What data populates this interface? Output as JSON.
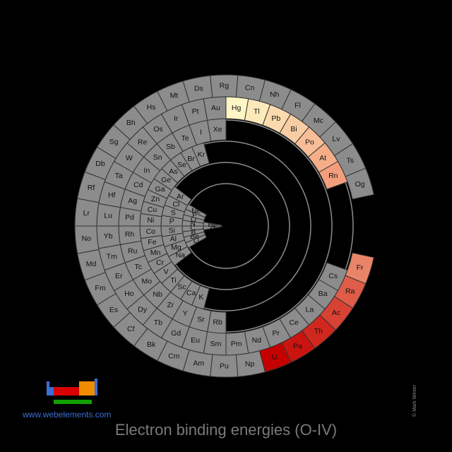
{
  "title": "Electron binding energies (O-IV)",
  "website": "www.webelements.com",
  "copyright": "© Mark Winter",
  "colors": {
    "background": "#000000",
    "no_data": "#8c8c8c",
    "cell_border": "#333333",
    "scale_low": "#ffffcc",
    "scale_mid": "#f4a582",
    "scale_high": "#c40000"
  },
  "chart_data": {
    "type": "heatmap",
    "layout": "spiral periodic table",
    "title": "Electron binding energies (O-IV)",
    "elements_in_order": [
      "H",
      "He",
      "Li",
      "Be",
      "B",
      "C",
      "N",
      "O",
      "F",
      "Ne",
      "Na",
      "Mg",
      "Al",
      "Si",
      "P",
      "S",
      "Cl",
      "Ar",
      "K",
      "Ca",
      "Sc",
      "Ti",
      "V",
      "Cr",
      "Mn",
      "Fe",
      "Co",
      "Ni",
      "Cu",
      "Zn",
      "Ga",
      "Ge",
      "As",
      "Se",
      "Br",
      "Kr",
      "Rb",
      "Sr",
      "Y",
      "Zr",
      "Nb",
      "Mo",
      "Tc",
      "Ru",
      "Rh",
      "Pd",
      "Ag",
      "Cd",
      "In",
      "Sn",
      "Sb",
      "Te",
      "I",
      "Xe",
      "Cs",
      "Ba",
      "La",
      "Ce",
      "Pr",
      "Nd",
      "Pm",
      "Sm",
      "Eu",
      "Gd",
      "Tb",
      "Dy",
      "Ho",
      "Er",
      "Tm",
      "Yb",
      "Lu",
      "Hf",
      "Ta",
      "W",
      "Re",
      "Os",
      "Ir",
      "Pt",
      "Au",
      "Hg",
      "Tl",
      "Pb",
      "Bi",
      "Po",
      "At",
      "Rn",
      "Fr",
      "Ra",
      "Ac",
      "Th",
      "Pa",
      "U",
      "Np",
      "Pu",
      "Am",
      "Cm",
      "Bk",
      "Cf",
      "Es",
      "Fm",
      "Md",
      "No",
      "Lr",
      "Rf",
      "Db",
      "Sg",
      "Bh",
      "Hs",
      "Mt",
      "Ds",
      "Rg",
      "Cn",
      "Nh",
      "Fl",
      "Mc",
      "Lv",
      "Ts",
      "Og"
    ],
    "highlighted_levels": {
      "Hg": 0.05,
      "Tl": 0.12,
      "Pb": 0.2,
      "Bi": 0.28,
      "Po": 0.36,
      "At": 0.45,
      "Rn": 0.52,
      "Fr": 0.6,
      "Ra": 0.72,
      "Ac": 0.8,
      "Th": 0.88,
      "Pa": 0.94,
      "U": 1.0
    }
  }
}
